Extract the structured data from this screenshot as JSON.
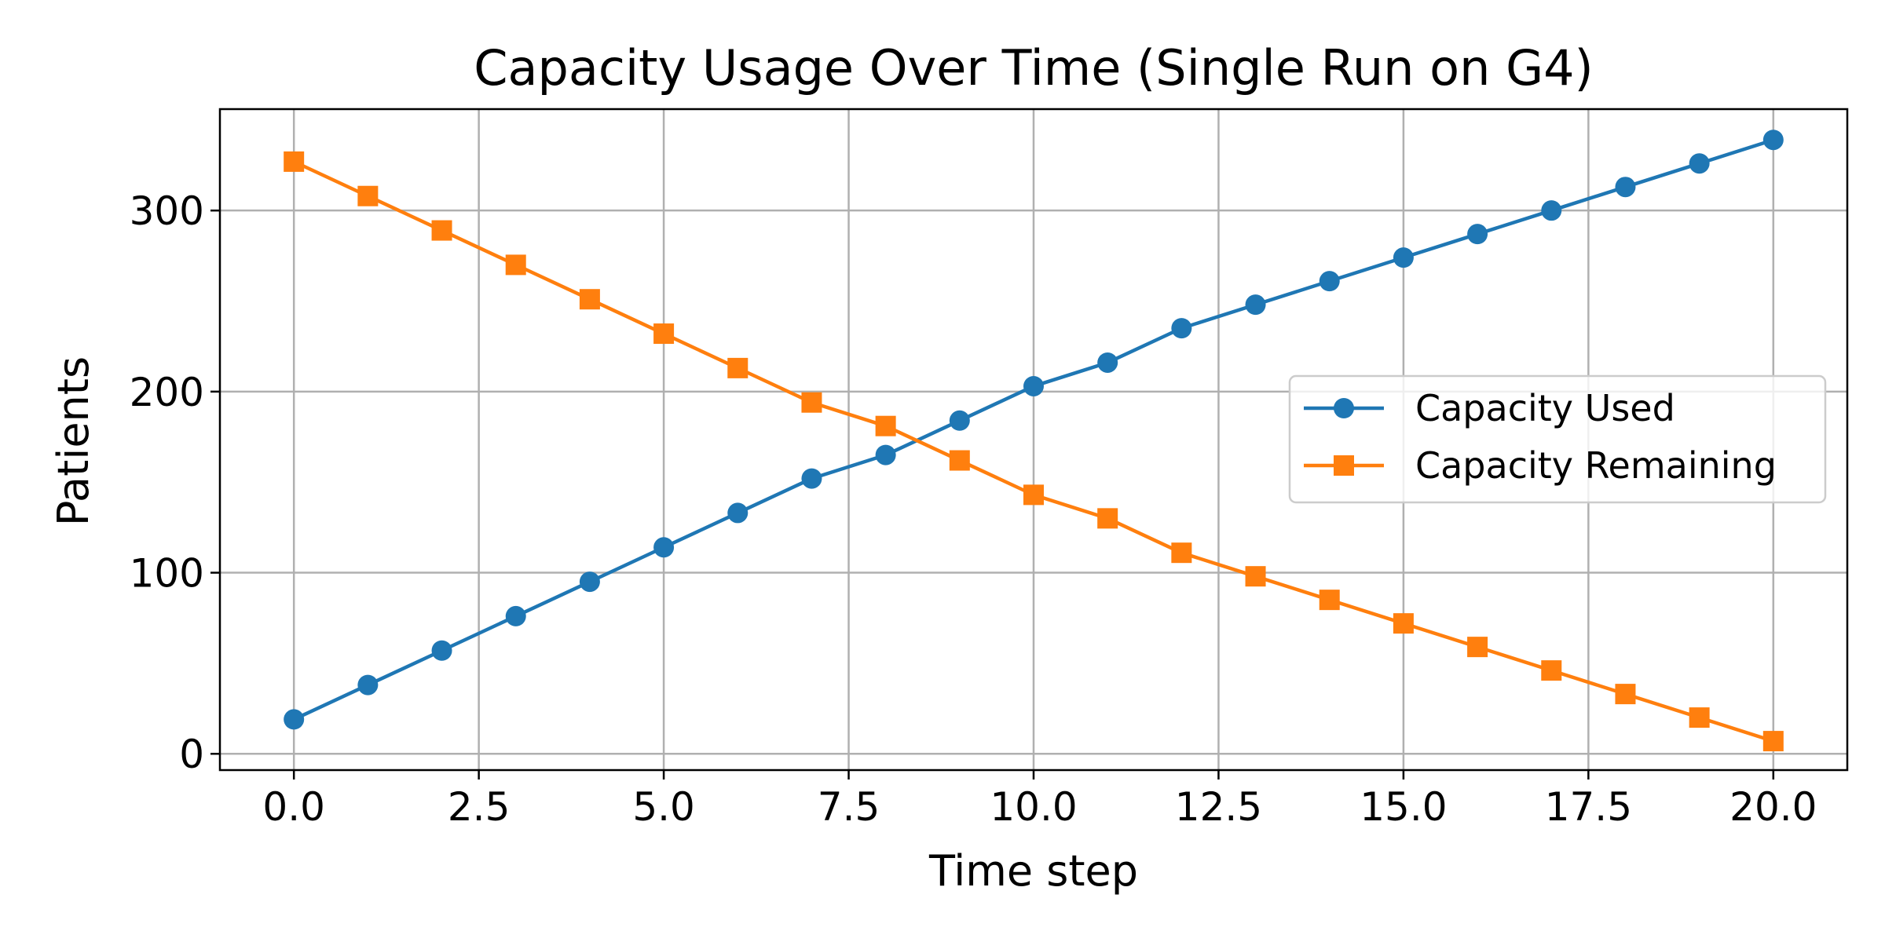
{
  "chart_data": {
    "type": "line",
    "title": "Capacity Usage Over Time (Single Run on G4)",
    "xlabel": "Time step",
    "ylabel": "Patients",
    "xlim": [
      -1.0,
      21.0
    ],
    "ylim": [
      -9,
      356
    ],
    "xticks": [
      0.0,
      2.5,
      5.0,
      7.5,
      10.0,
      12.5,
      15.0,
      17.5,
      20.0
    ],
    "xtick_labels": [
      "0.0",
      "2.5",
      "5.0",
      "7.5",
      "10.0",
      "12.5",
      "15.0",
      "17.5",
      "20.0"
    ],
    "yticks": [
      0,
      100,
      200,
      300
    ],
    "ytick_labels": [
      "0",
      "100",
      "200",
      "300"
    ],
    "grid": true,
    "legend_position": "center-right",
    "x": [
      0,
      1,
      2,
      3,
      4,
      5,
      6,
      7,
      8,
      9,
      10,
      11,
      12,
      13,
      14,
      15,
      16,
      17,
      18,
      19,
      20
    ],
    "series": [
      {
        "name": "Capacity Used",
        "color": "#1f77b4",
        "marker": "circle",
        "values": [
          19,
          38,
          57,
          76,
          95,
          114,
          133,
          152,
          165,
          184,
          203,
          216,
          235,
          248,
          261,
          274,
          287,
          300,
          313,
          326,
          339
        ]
      },
      {
        "name": "Capacity Remaining",
        "color": "#ff7f0e",
        "marker": "square",
        "values": [
          327,
          308,
          289,
          270,
          251,
          232,
          213,
          194,
          181,
          162,
          143,
          130,
          111,
          98,
          85,
          72,
          59,
          46,
          33,
          20,
          7
        ]
      }
    ]
  }
}
